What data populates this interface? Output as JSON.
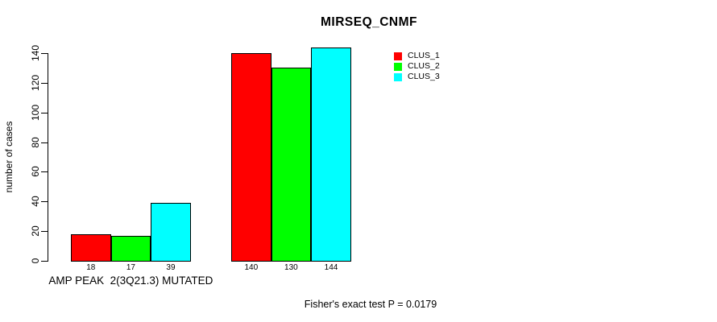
{
  "chart_data": {
    "type": "bar",
    "title": "MIRSEQ_CNMF",
    "ylabel": "number of cases",
    "xlabel": "",
    "ylim": [
      0,
      140
    ],
    "yticks": [
      0,
      20,
      40,
      60,
      80,
      100,
      120,
      140
    ],
    "grid": false,
    "legend_position": "top-right",
    "background_color": "#ffffff",
    "bar_border_color": "#000000",
    "text_color": "#000000",
    "series": [
      {
        "name": "CLUS_1",
        "color": "#ff0000"
      },
      {
        "name": "CLUS_2",
        "color": "#00ff00"
      },
      {
        "name": "CLUS_3",
        "color": "#00ffff"
      }
    ],
    "groups": [
      {
        "label": "AMP PEAK  2(3Q21.3) MUTATED",
        "values": [
          18,
          17,
          39
        ]
      },
      {
        "label": "",
        "values": [
          140,
          130,
          144
        ]
      }
    ],
    "bar_value_labels": [
      [
        18,
        17,
        39
      ],
      [
        140,
        130,
        144
      ]
    ],
    "annotation": "Fisher's exact test P = 0.0179"
  }
}
